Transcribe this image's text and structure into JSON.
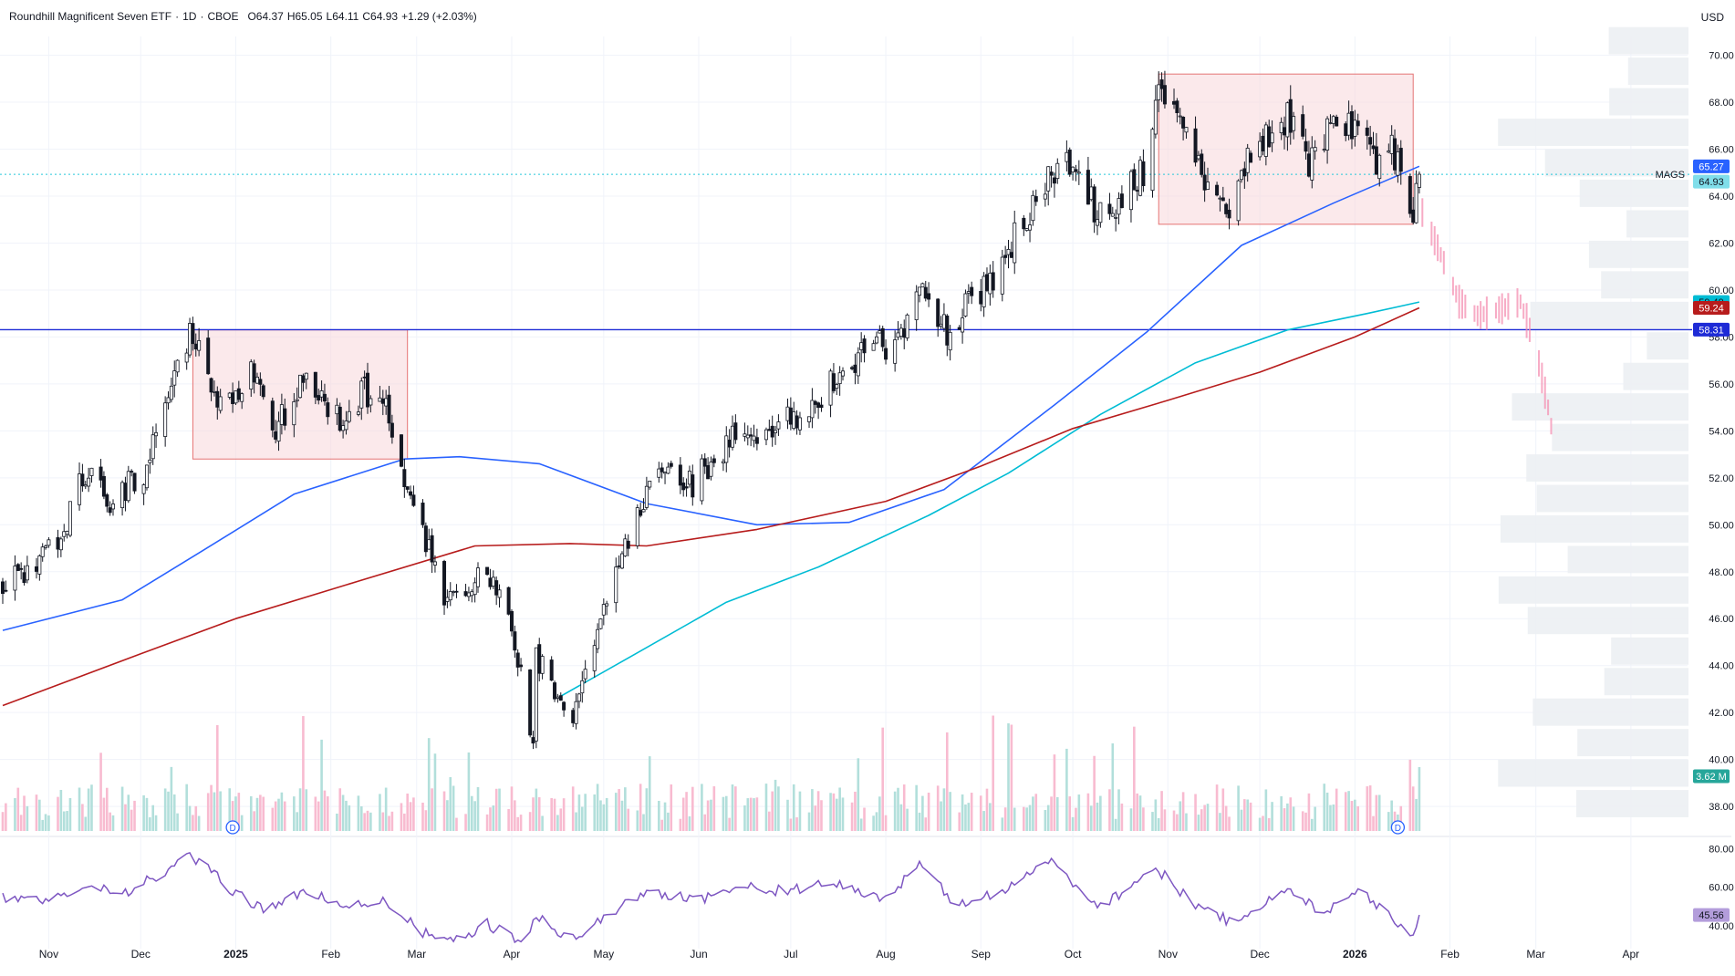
{
  "header": {
    "symbol_name": "Roundhill Magnificent Seven ETF",
    "interval": "1D",
    "exchange": "CBOE",
    "open_label": "O",
    "open": "64.37",
    "high_label": "H",
    "high": "65.05",
    "low_label": "L",
    "low": "64.11",
    "close_label": "C",
    "close": "64.93",
    "change": "+1.29 (+2.03%)",
    "currency": "USD"
  },
  "colors": {
    "up": "#131722",
    "down": "#131722",
    "ma_blue": "#2962ff",
    "ma_cyan": "#00bcd4",
    "ma_red": "#b71c1c",
    "horizontal_line": "#1e2bd6",
    "box_fill": "#f8d7da",
    "box_stroke": "#e57373",
    "rsi": "#7e57c2",
    "vol_up": "#b2dfdb",
    "vol_down": "#f8bbd0",
    "projection": "#f48fb1",
    "price_line": "#26c6da",
    "volume_badge": "#26a69a"
  },
  "chart_data": {
    "type": "candlestick",
    "symbol": "MAGS",
    "x_axis_labels": [
      "Nov",
      "Dec",
      "2025",
      "Feb",
      "Mar",
      "Apr",
      "May",
      "Jun",
      "Jul",
      "Aug",
      "Sep",
      "Oct",
      "Nov",
      "Dec",
      "2026",
      "Feb",
      "Mar",
      "Apr"
    ],
    "y_axis": {
      "range": [
        36.8,
        70.8
      ],
      "ticks": [
        "38.00",
        "40.00",
        "42.00",
        "44.00",
        "46.00",
        "48.00",
        "50.00",
        "52.00",
        "54.00",
        "56.00",
        "58.00",
        "60.00",
        "62.00",
        "64.00",
        "66.00",
        "68.00",
        "70.00"
      ]
    },
    "price_trajectory": [
      {
        "date": "2024-10-17",
        "price": 47.4
      },
      {
        "date": "2024-11-05",
        "price": 49.2
      },
      {
        "date": "2024-11-11",
        "price": 52.4
      },
      {
        "date": "2024-11-21",
        "price": 51.0
      },
      {
        "date": "2024-12-02",
        "price": 52.2
      },
      {
        "date": "2024-12-11",
        "price": 56.3
      },
      {
        "date": "2024-12-18",
        "price": 58.2
      },
      {
        "date": "2024-12-27",
        "price": 55.0
      },
      {
        "date": "2025-01-07",
        "price": 56.5
      },
      {
        "date": "2025-01-13",
        "price": 53.8
      },
      {
        "date": "2025-01-24",
        "price": 56.5
      },
      {
        "date": "2025-02-03",
        "price": 54.5
      },
      {
        "date": "2025-02-12",
        "price": 55.7
      },
      {
        "date": "2025-02-19",
        "price": 55.3
      },
      {
        "date": "2025-02-26",
        "price": 51.5
      },
      {
        "date": "2025-03-10",
        "price": 47.0
      },
      {
        "date": "2025-03-24",
        "price": 48.0
      },
      {
        "date": "2025-04-01",
        "price": 45.5
      },
      {
        "date": "2025-04-08",
        "price": 40.8
      },
      {
        "date": "2025-04-09",
        "price": 44.3
      },
      {
        "date": "2025-04-21",
        "price": 41.8
      },
      {
        "date": "2025-05-01",
        "price": 46.8
      },
      {
        "date": "2025-05-12",
        "price": 50.5
      },
      {
        "date": "2025-05-20",
        "price": 52.5
      },
      {
        "date": "2025-05-30",
        "price": 51.8
      },
      {
        "date": "2025-06-12",
        "price": 53.6
      },
      {
        "date": "2025-06-25",
        "price": 53.9
      },
      {
        "date": "2025-07-10",
        "price": 55.4
      },
      {
        "date": "2025-07-30",
        "price": 57.8
      },
      {
        "date": "2025-08-01",
        "price": 56.5
      },
      {
        "date": "2025-08-12",
        "price": 60.4
      },
      {
        "date": "2025-08-21",
        "price": 58.3
      },
      {
        "date": "2025-09-05",
        "price": 60.6
      },
      {
        "date": "2025-09-23",
        "price": 64.9
      },
      {
        "date": "2025-10-03",
        "price": 65.2
      },
      {
        "date": "2025-10-10",
        "price": 63.0
      },
      {
        "date": "2025-10-24",
        "price": 65.0
      },
      {
        "date": "2025-10-29",
        "price": 68.8
      },
      {
        "date": "2025-11-07",
        "price": 66.5
      },
      {
        "date": "2025-11-20",
        "price": 63.2
      },
      {
        "date": "2025-11-28",
        "price": 66.2
      },
      {
        "date": "2025-12-10",
        "price": 67.5
      },
      {
        "date": "2025-12-17",
        "price": 65.4
      },
      {
        "date": "2025-12-26",
        "price": 67.6
      },
      {
        "date": "2026-01-05",
        "price": 66.1
      },
      {
        "date": "2026-01-09",
        "price": 65.5
      },
      {
        "date": "2026-01-12",
        "price": 66.4
      },
      {
        "date": "2026-01-20",
        "price": 63.6
      },
      {
        "date": "2026-01-22",
        "price": 64.93
      }
    ],
    "moving_averages": [
      {
        "name": "ma-blue",
        "color": "#2962ff",
        "last_value": "65.27",
        "points": [
          {
            "date": "2024-10-17",
            "value": 45.5
          },
          {
            "date": "2024-11-25",
            "value": 46.8
          },
          {
            "date": "2024-12-20",
            "value": 48.8
          },
          {
            "date": "2025-01-20",
            "value": 51.3
          },
          {
            "date": "2025-02-25",
            "value": 52.8
          },
          {
            "date": "2025-03-15",
            "value": 52.9
          },
          {
            "date": "2025-04-10",
            "value": 52.6
          },
          {
            "date": "2025-05-15",
            "value": 50.9
          },
          {
            "date": "2025-06-20",
            "value": 50.0
          },
          {
            "date": "2025-07-20",
            "value": 50.1
          },
          {
            "date": "2025-08-20",
            "value": 51.5
          },
          {
            "date": "2025-09-25",
            "value": 55.1
          },
          {
            "date": "2025-10-25",
            "value": 58.2
          },
          {
            "date": "2025-11-25",
            "value": 61.9
          },
          {
            "date": "2025-12-25",
            "value": 63.7
          },
          {
            "date": "2026-01-22",
            "value": 65.27
          }
        ]
      },
      {
        "name": "ma-cyan",
        "color": "#00bcd4",
        "last_value": "59.49",
        "points": [
          {
            "date": "2025-04-17",
            "value": 42.7
          },
          {
            "date": "2025-05-10",
            "value": 44.4
          },
          {
            "date": "2025-06-10",
            "value": 46.7
          },
          {
            "date": "2025-07-10",
            "value": 48.2
          },
          {
            "date": "2025-08-15",
            "value": 50.4
          },
          {
            "date": "2025-09-10",
            "value": 52.2
          },
          {
            "date": "2025-10-10",
            "value": 54.7
          },
          {
            "date": "2025-11-10",
            "value": 56.9
          },
          {
            "date": "2025-12-10",
            "value": 58.3
          },
          {
            "date": "2026-01-05",
            "value": 59.0
          },
          {
            "date": "2026-01-22",
            "value": 59.49
          }
        ]
      },
      {
        "name": "ma-red",
        "color": "#b71c1c",
        "last_value": "59.24",
        "points": [
          {
            "date": "2024-10-17",
            "value": 42.3
          },
          {
            "date": "2024-12-01",
            "value": 44.5
          },
          {
            "date": "2025-01-01",
            "value": 46.0
          },
          {
            "date": "2025-02-10",
            "value": 47.6
          },
          {
            "date": "2025-03-20",
            "value": 49.1
          },
          {
            "date": "2025-04-20",
            "value": 49.2
          },
          {
            "date": "2025-05-15",
            "value": 49.1
          },
          {
            "date": "2025-06-20",
            "value": 49.8
          },
          {
            "date": "2025-08-01",
            "value": 51.0
          },
          {
            "date": "2025-09-01",
            "value": 52.5
          },
          {
            "date": "2025-10-01",
            "value": 54.1
          },
          {
            "date": "2025-11-01",
            "value": 55.3
          },
          {
            "date": "2025-12-01",
            "value": 56.5
          },
          {
            "date": "2026-01-01",
            "value": 58.0
          },
          {
            "date": "2026-01-22",
            "value": 59.24
          }
        ]
      }
    ],
    "horizontal_line": {
      "value": 58.31,
      "label": "58.31"
    },
    "current_price_label": "64.93",
    "symbol_label": "MAGS",
    "boxes": [
      {
        "start": "2024-12-18",
        "end": "2025-02-26",
        "top": 58.3,
        "bottom": 52.8
      },
      {
        "start": "2025-10-29",
        "end": "2026-01-20",
        "top": 69.2,
        "bottom": 62.8
      }
    ],
    "projection": [
      {
        "date": "2026-01-23",
        "value": 63.3
      },
      {
        "date": "2026-01-29",
        "value": 61.5
      },
      {
        "date": "2026-02-04",
        "value": 59.5
      },
      {
        "date": "2026-02-10",
        "value": 58.9
      },
      {
        "date": "2026-02-18",
        "value": 59.2
      },
      {
        "date": "2026-02-24",
        "value": 59.5
      },
      {
        "date": "2026-03-01",
        "value": 57.5
      },
      {
        "date": "2026-03-05",
        "value": 55.0
      },
      {
        "date": "2026-03-06",
        "value": 54.2
      }
    ],
    "volume": {
      "last_label": "3.62 M"
    },
    "dividend_markers": [
      {
        "date": "2024-12-31",
        "label": "D"
      },
      {
        "date": "2026-01-15",
        "label": "D"
      }
    ],
    "rsi": {
      "ticks": [
        "80.00",
        "60.00",
        "40.00"
      ],
      "range": [
        28,
        86
      ],
      "last_value": "45.56",
      "points": [
        {
          "date": "2024-10-17",
          "value": 54
        },
        {
          "date": "2024-11-01",
          "value": 52
        },
        {
          "date": "2024-11-12",
          "value": 62
        },
        {
          "date": "2024-11-25",
          "value": 57
        },
        {
          "date": "2024-12-10",
          "value": 68
        },
        {
          "date": "2024-12-17",
          "value": 77
        },
        {
          "date": "2024-12-31",
          "value": 58
        },
        {
          "date": "2025-01-10",
          "value": 49
        },
        {
          "date": "2025-01-24",
          "value": 57
        },
        {
          "date": "2025-02-10",
          "value": 50
        },
        {
          "date": "2025-02-19",
          "value": 53
        },
        {
          "date": "2025-03-03",
          "value": 36
        },
        {
          "date": "2025-03-13",
          "value": 31
        },
        {
          "date": "2025-03-24",
          "value": 41
        },
        {
          "date": "2025-04-04",
          "value": 31
        },
        {
          "date": "2025-04-09",
          "value": 44
        },
        {
          "date": "2025-04-21",
          "value": 33
        },
        {
          "date": "2025-05-05",
          "value": 48
        },
        {
          "date": "2025-05-15",
          "value": 58
        },
        {
          "date": "2025-06-01",
          "value": 54
        },
        {
          "date": "2025-06-15",
          "value": 60
        },
        {
          "date": "2025-07-01",
          "value": 58
        },
        {
          "date": "2025-07-15",
          "value": 62
        },
        {
          "date": "2025-08-01",
          "value": 54
        },
        {
          "date": "2025-08-12",
          "value": 71
        },
        {
          "date": "2025-08-25",
          "value": 50
        },
        {
          "date": "2025-09-10",
          "value": 60
        },
        {
          "date": "2025-09-23",
          "value": 74
        },
        {
          "date": "2025-10-10",
          "value": 50
        },
        {
          "date": "2025-10-28",
          "value": 70
        },
        {
          "date": "2025-11-10",
          "value": 51
        },
        {
          "date": "2025-11-21",
          "value": 42
        },
        {
          "date": "2025-12-10",
          "value": 58
        },
        {
          "date": "2025-12-22",
          "value": 47
        },
        {
          "date": "2026-01-02",
          "value": 60
        },
        {
          "date": "2026-01-10",
          "value": 48
        },
        {
          "date": "2026-01-20",
          "value": 36
        },
        {
          "date": "2026-01-22",
          "value": 45.56
        }
      ]
    }
  }
}
